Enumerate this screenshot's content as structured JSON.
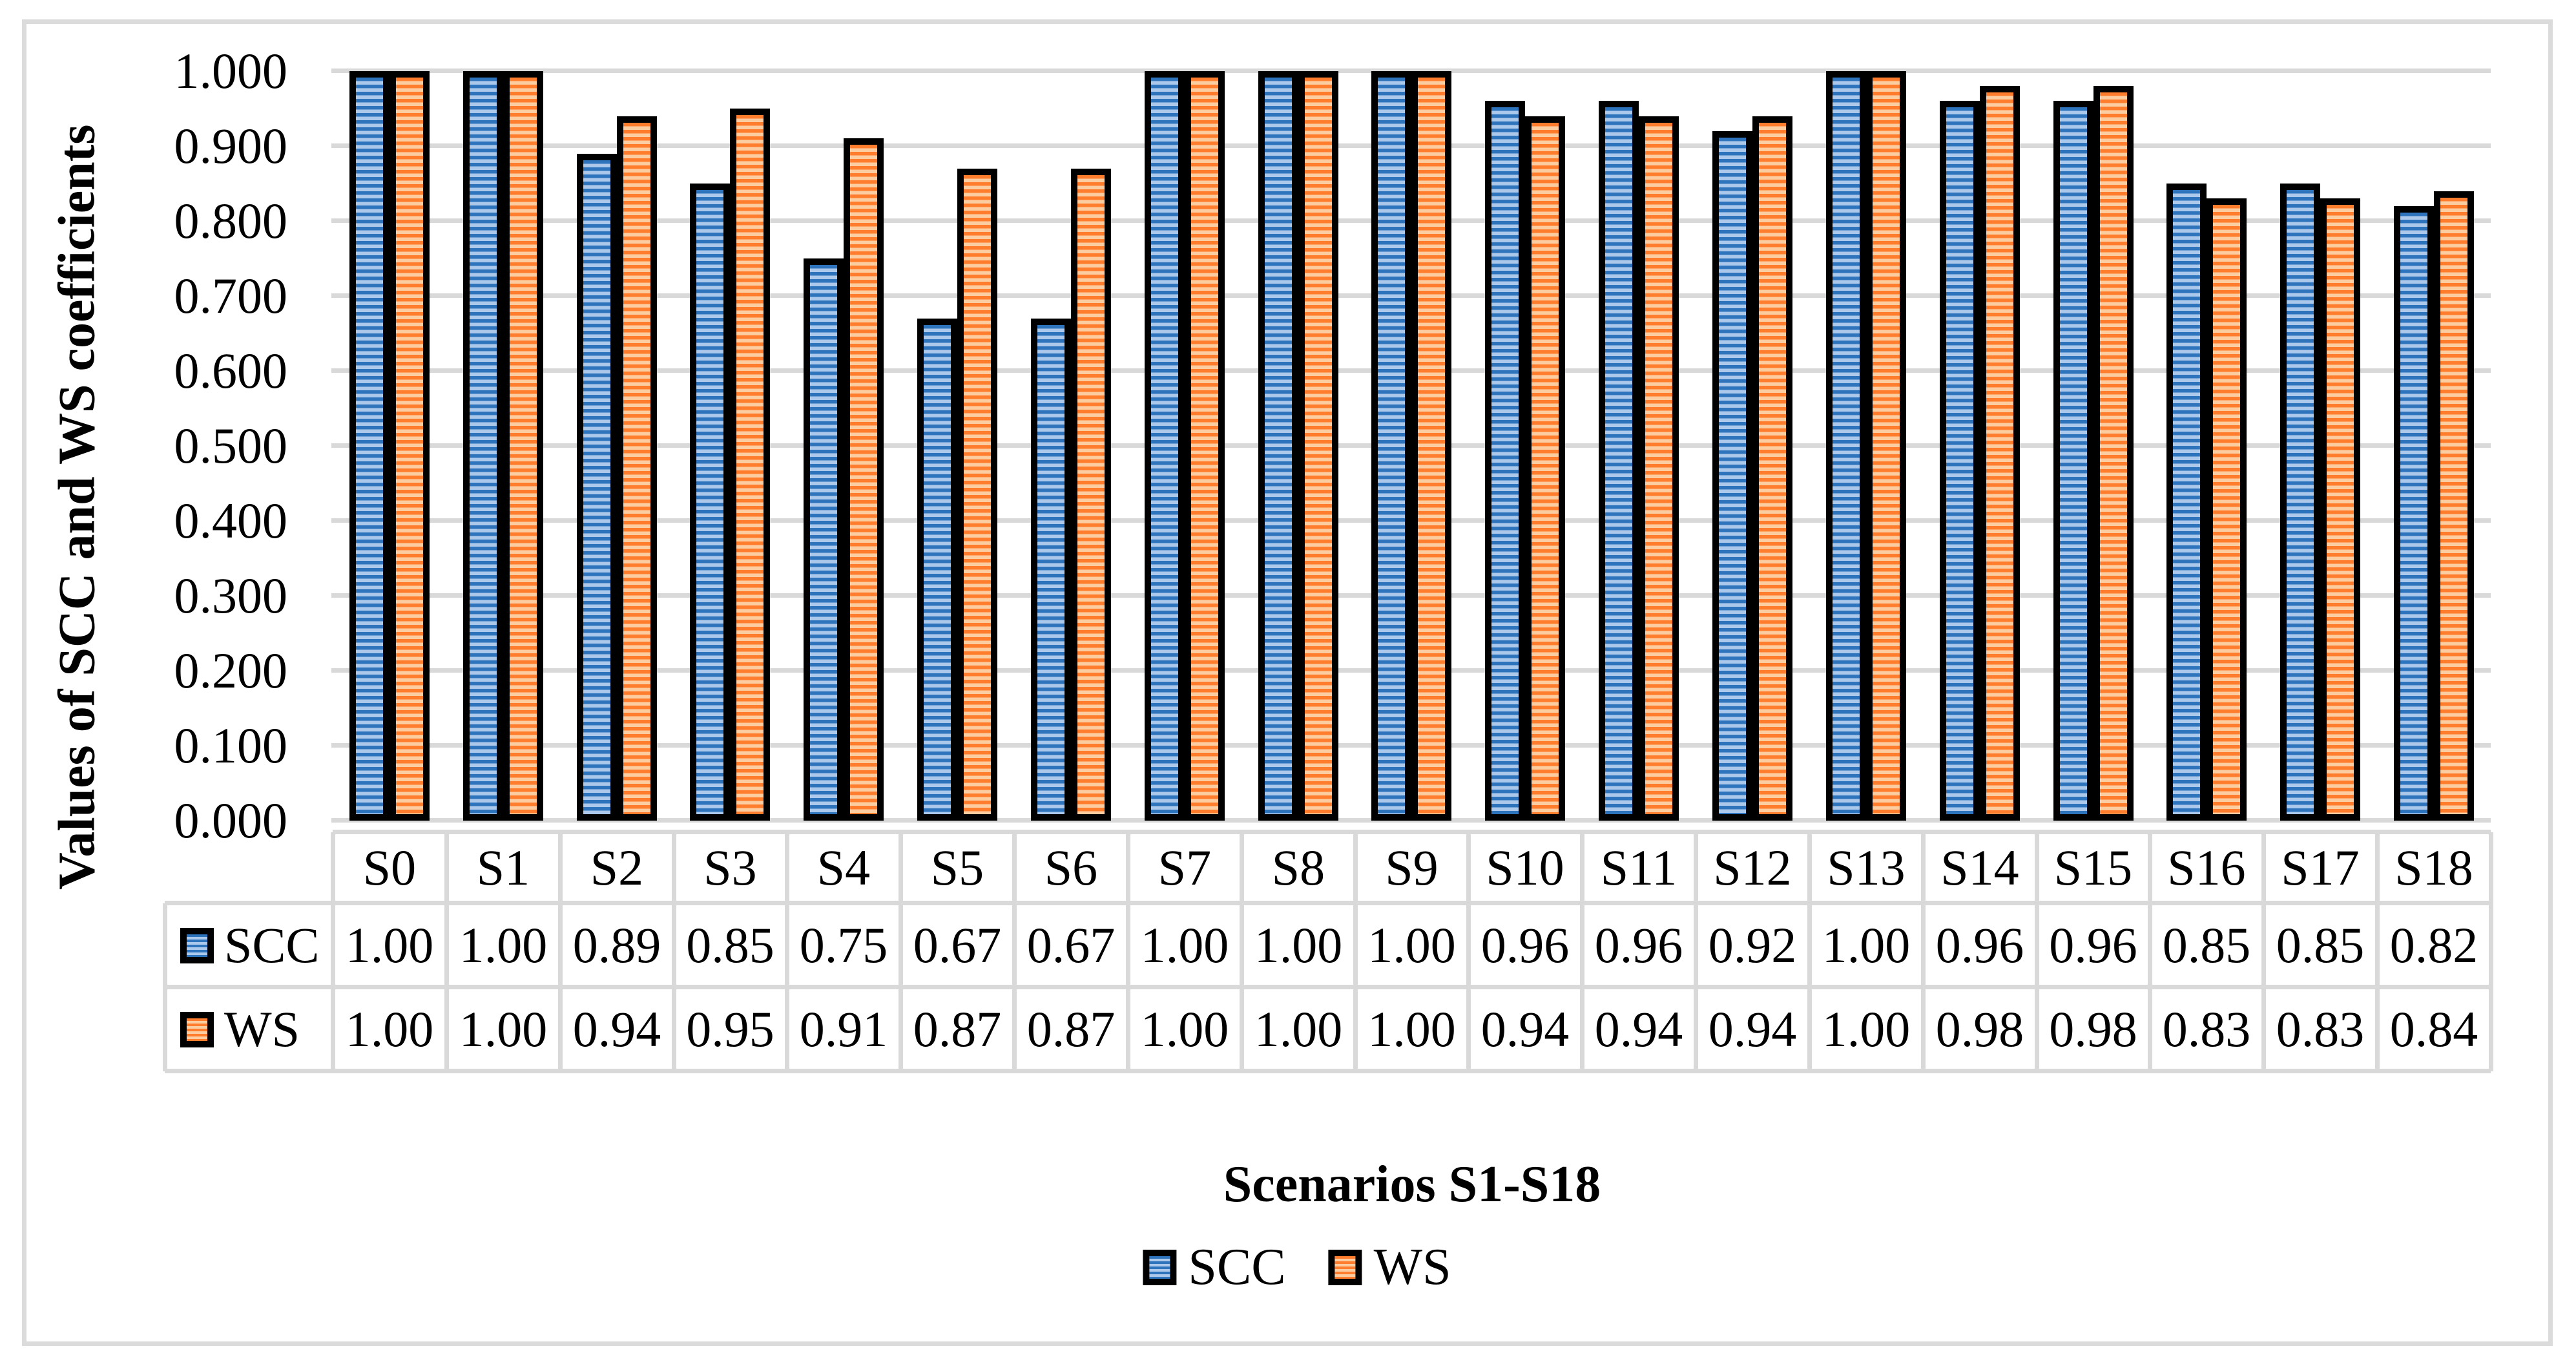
{
  "chart_data": {
    "type": "bar",
    "title": "",
    "categories": [
      "S0",
      "S1",
      "S2",
      "S3",
      "S4",
      "S5",
      "S6",
      "S7",
      "S8",
      "S9",
      "S10",
      "S11",
      "S12",
      "S13",
      "S14",
      "S15",
      "S16",
      "S17",
      "S18"
    ],
    "series": [
      {
        "name": "SCC",
        "values": [
          1.0,
          1.0,
          0.89,
          0.85,
          0.75,
          0.67,
          0.67,
          1.0,
          1.0,
          1.0,
          0.96,
          0.96,
          0.92,
          1.0,
          0.96,
          0.96,
          0.85,
          0.85,
          0.82
        ]
      },
      {
        "name": "WS",
        "values": [
          1.0,
          1.0,
          0.94,
          0.95,
          0.91,
          0.87,
          0.87,
          1.0,
          1.0,
          1.0,
          0.94,
          0.94,
          0.94,
          1.0,
          0.98,
          0.98,
          0.83,
          0.83,
          0.84
        ]
      }
    ],
    "xlabel": "Scenarios S1-S18",
    "ylabel": "Values of SCC and WS coefficients",
    "ylim": [
      0,
      1
    ],
    "ytick_step": 0.1,
    "ytick_labels": [
      "1.000",
      "0.900",
      "0.800",
      "0.700",
      "0.600",
      "0.500",
      "0.400",
      "0.300",
      "0.200",
      "0.100",
      "0.000"
    ],
    "grid": true,
    "legend_position": "bottom",
    "legend": [
      "SCC",
      "WS"
    ],
    "data_table": {
      "row_labels": [
        "SCC",
        "WS"
      ],
      "rows": [
        [
          "1.00",
          "1.00",
          "0.89",
          "0.85",
          "0.75",
          "0.67",
          "0.67",
          "1.00",
          "1.00",
          "1.00",
          "0.96",
          "0.96",
          "0.92",
          "1.00",
          "0.96",
          "0.96",
          "0.85",
          "0.85",
          "0.82"
        ],
        [
          "1.00",
          "1.00",
          "0.94",
          "0.95",
          "0.91",
          "0.87",
          "0.87",
          "1.00",
          "1.00",
          "1.00",
          "0.94",
          "0.94",
          "0.94",
          "1.00",
          "0.98",
          "0.98",
          "0.83",
          "0.83",
          "0.84"
        ]
      ]
    },
    "colors": {
      "scc_stripe_dark": "#2E74BC",
      "scc_stripe_light": "#ACC9EB",
      "ws_stripe_dark": "#FF7D2D",
      "ws_stripe_light": "#FCCDA0",
      "bar_border": "#000000",
      "gridline": "#D9D9D9",
      "table_border": "#D9D9D9",
      "figure_border": "#DBDBDB",
      "text": "#000000"
    }
  }
}
